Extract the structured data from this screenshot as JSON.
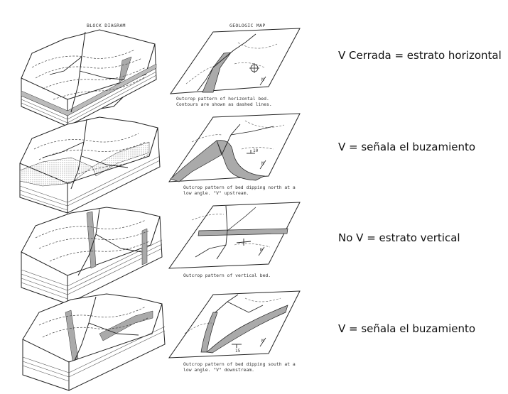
{
  "figure": {
    "header_left": "BLOCK DIAGRAM",
    "header_right": "GEOLOGIC MAP",
    "panels": [
      {
        "caption_lines": [
          "Outcrop pattern of horizontal bed.",
          "Contours are shown as dashed lines."
        ],
        "dip_label": ""
      },
      {
        "caption_lines": [
          "Outcrop pattern of bed dipping north at a",
          "low angle.  \"V\" upstream."
        ],
        "dip_label": "10"
      },
      {
        "caption_lines": [
          "Outcrop pattern of vertical bed."
        ],
        "dip_label": ""
      },
      {
        "caption_lines": [
          "Outcrop pattern of bed dipping south at a",
          "low angle.  \"V\" downstream."
        ],
        "dip_label": "15"
      }
    ],
    "north_label": "N"
  },
  "annotations": [
    "V Cerrada = estrato horizontal",
    "V = señala el buzamiento",
    "No V = estrato vertical",
    "V = señala el buzamiento"
  ]
}
